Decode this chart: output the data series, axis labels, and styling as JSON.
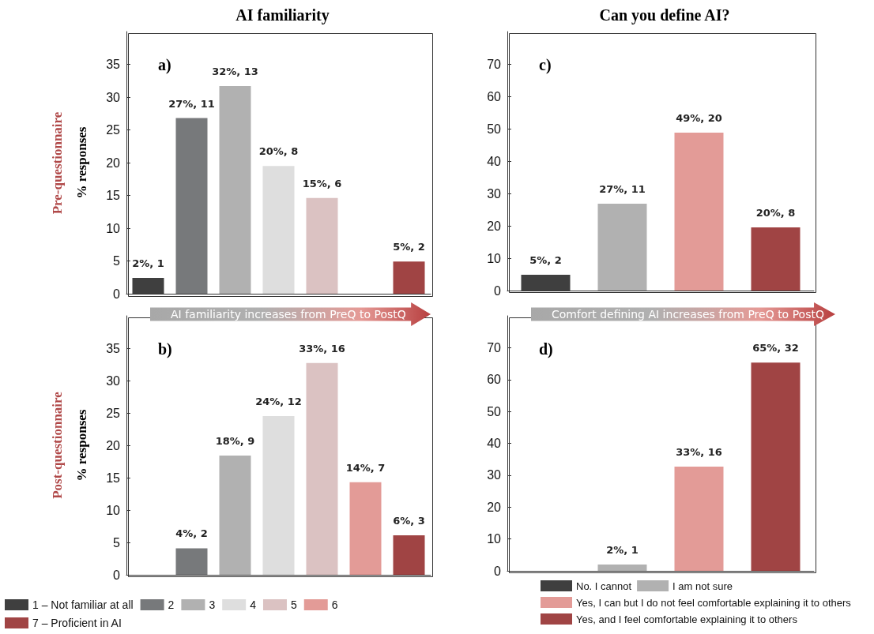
{
  "chart_data": [
    {
      "type": "bar",
      "title": "AI familiarity",
      "ylabel": "% responses",
      "annotations": [
        "a)",
        "Pre-questionnaire",
        "AI familiarity increases from PreQ to PostQ"
      ],
      "categories": [
        null,
        null,
        null,
        null,
        null,
        null,
        null
      ],
      "series": [
        {
          "color": "#3f3f3f",
          "values": [
            2.4,
            null,
            null,
            null,
            null,
            null,
            null
          ],
          "value_labels": [
            "2%, 1",
            null,
            null,
            null,
            null,
            null,
            null
          ]
        },
        {
          "color": "#77797b",
          "values": [
            null,
            26.8,
            null,
            null,
            null,
            null,
            null
          ],
          "value_labels": [
            null,
            "27%, 11",
            null,
            null,
            null,
            null,
            null
          ]
        },
        {
          "color": "#b1b1b1",
          "values": [
            null,
            null,
            31.7,
            null,
            null,
            null,
            null
          ],
          "value_labels": [
            null,
            null,
            "32%, 13",
            null,
            null,
            null,
            null
          ]
        },
        {
          "color": "#dedede",
          "values": [
            null,
            null,
            null,
            19.5,
            null,
            null,
            null
          ],
          "value_labels": [
            null,
            null,
            null,
            "20%, 8",
            null,
            null,
            null
          ]
        },
        {
          "color": "#dbc2c2",
          "values": [
            null,
            null,
            null,
            null,
            14.6,
            null,
            null
          ],
          "value_labels": [
            null,
            null,
            null,
            null,
            "15%, 6",
            null,
            null
          ]
        },
        {
          "color": "#a04444",
          "values": [
            null,
            null,
            null,
            null,
            null,
            null,
            4.9
          ],
          "value_labels": [
            null,
            null,
            null,
            null,
            null,
            null,
            "5%, 2"
          ]
        }
      ],
      "ylim": [
        0,
        40
      ],
      "yticks": [
        0,
        5,
        10,
        15,
        20,
        25,
        30,
        35
      ],
      "tick_labels": "y",
      "grid": false,
      "legend": false
    },
    {
      "type": "bar",
      "ylabel": "% responses",
      "annotations": [
        "b)",
        "Post-questionnaire"
      ],
      "categories": [
        null,
        null,
        null,
        null,
        null,
        null,
        null
      ],
      "series": [
        {
          "name": "1 – Not familiar at all",
          "color": "#3f3f3f",
          "values": [
            null,
            null,
            null,
            null,
            null,
            null,
            null
          ],
          "value_labels": [
            null,
            null,
            null,
            null,
            null,
            null,
            null
          ]
        },
        {
          "name": "2",
          "color": "#77797b",
          "values": [
            null,
            4.1,
            null,
            null,
            null,
            null,
            null
          ],
          "value_labels": [
            null,
            "4%, 2",
            null,
            null,
            null,
            null,
            null
          ]
        },
        {
          "name": "3",
          "color": "#b1b1b1",
          "values": [
            null,
            null,
            18.4,
            null,
            null,
            null,
            null
          ],
          "value_labels": [
            null,
            null,
            "18%, 9",
            null,
            null,
            null,
            null
          ]
        },
        {
          "name": "4",
          "color": "#dedede",
          "values": [
            null,
            null,
            null,
            24.5,
            null,
            null,
            null
          ],
          "value_labels": [
            null,
            null,
            null,
            "24%, 12",
            null,
            null,
            null
          ]
        },
        {
          "name": "5",
          "color": "#dbc2c2",
          "values": [
            null,
            null,
            null,
            null,
            32.7,
            null,
            null
          ],
          "value_labels": [
            null,
            null,
            null,
            null,
            "33%, 16",
            null,
            null
          ]
        },
        {
          "name": "6",
          "color": "#e39b97",
          "values": [
            null,
            null,
            null,
            null,
            null,
            14.3,
            null
          ],
          "value_labels": [
            null,
            null,
            null,
            null,
            null,
            "14%, 7",
            null
          ]
        },
        {
          "name": "7 – Proficient in AI",
          "color": "#a04444",
          "values": [
            null,
            null,
            null,
            null,
            null,
            null,
            6.1
          ],
          "value_labels": [
            null,
            null,
            null,
            null,
            null,
            null,
            "6%, 3"
          ]
        }
      ],
      "ylim": [
        0,
        40
      ],
      "yticks": [
        0,
        5,
        10,
        15,
        20,
        25,
        30,
        35
      ],
      "tick_labels": "y",
      "grid": false,
      "legend": "bottom"
    },
    {
      "type": "bar",
      "title": "Can you define AI?",
      "annotations": [
        "c)",
        null,
        "Comfort defining  AI increases from PreQ to PostQ"
      ],
      "categories": [
        null,
        null,
        null,
        null
      ],
      "series": [
        {
          "color": "#3f3f3f",
          "values": [
            4.9,
            null,
            null,
            null
          ],
          "value_labels": [
            "5%, 2",
            null,
            null,
            null
          ]
        },
        {
          "color": "#b1b1b1",
          "values": [
            null,
            26.8,
            null,
            null
          ],
          "value_labels": [
            null,
            "27%, 11",
            null,
            null
          ]
        },
        {
          "color": "#e39b97",
          "values": [
            null,
            null,
            48.8,
            null
          ],
          "value_labels": [
            null,
            null,
            "49%, 20",
            null
          ]
        },
        {
          "color": "#a04444",
          "values": [
            null,
            null,
            null,
            19.5
          ],
          "value_labels": [
            null,
            null,
            null,
            "20%, 8"
          ]
        }
      ],
      "ylim": [
        0,
        80
      ],
      "yticks": [
        0,
        10,
        20,
        30,
        40,
        50,
        60,
        70
      ],
      "tick_labels": "y",
      "grid": false,
      "legend": false
    },
    {
      "type": "bar",
      "annotations": [
        "d)"
      ],
      "categories": [
        null,
        null,
        null,
        null
      ],
      "series": [
        {
          "name": "No. I cannot",
          "color": "#3f3f3f",
          "values": [
            null,
            null,
            null,
            null
          ],
          "value_labels": [
            null,
            null,
            null,
            null
          ]
        },
        {
          "name": "I am not sure",
          "color": "#b1b1b1",
          "values": [
            null,
            2.0,
            null,
            null
          ],
          "value_labels": [
            null,
            "2%, 1",
            null,
            null
          ]
        },
        {
          "name": "Yes, I can but I do not feel comfortable explaining it to others",
          "color": "#e39b97",
          "values": [
            null,
            null,
            32.7,
            null
          ],
          "value_labels": [
            null,
            null,
            "33%, 16",
            null
          ]
        },
        {
          "name": "Yes, and I feel comfortable explaining it to others",
          "color": "#a04444",
          "values": [
            null,
            null,
            null,
            65.3
          ],
          "value_labels": [
            null,
            null,
            null,
            "65%, 32"
          ]
        }
      ],
      "ylim": [
        0,
        80
      ],
      "yticks": [
        0,
        10,
        20,
        30,
        40,
        50,
        60,
        70
      ],
      "tick_labels": "y",
      "grid": false,
      "legend": "bottom"
    }
  ]
}
